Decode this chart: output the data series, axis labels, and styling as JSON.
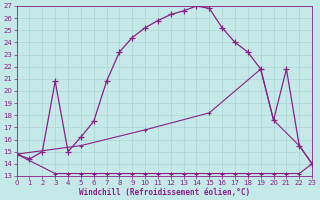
{
  "xlabel": "Windchill (Refroidissement éolien,°C)",
  "ylim": [
    13,
    27
  ],
  "xlim": [
    0,
    23
  ],
  "yticks": [
    13,
    14,
    15,
    16,
    17,
    18,
    19,
    20,
    21,
    22,
    23,
    24,
    25,
    26,
    27
  ],
  "xticks": [
    0,
    1,
    2,
    3,
    4,
    5,
    6,
    7,
    8,
    9,
    10,
    11,
    12,
    13,
    14,
    15,
    16,
    17,
    18,
    19,
    20,
    21,
    22,
    23
  ],
  "bg_color": "#c5e8e8",
  "grid_color": "#aed4d4",
  "line_color": "#882288",
  "line1_x": [
    0,
    1,
    2,
    3,
    4,
    5,
    6,
    7,
    8,
    9,
    10,
    11,
    12,
    13,
    14,
    15,
    16,
    17,
    18,
    19,
    20,
    21,
    22,
    23
  ],
  "line1_y": [
    14.8,
    14.4,
    15.0,
    20.8,
    15.0,
    16.2,
    17.5,
    20.8,
    23.2,
    24.4,
    25.2,
    25.8,
    26.3,
    26.6,
    27.0,
    26.8,
    25.2,
    24.0,
    23.2,
    21.8,
    17.6,
    21.8,
    15.5,
    14.0
  ],
  "line2_x": [
    0,
    3,
    4,
    5,
    6,
    7,
    8,
    9,
    10,
    11,
    12,
    13,
    14,
    15,
    16,
    17,
    18,
    19,
    20,
    21,
    22,
    23
  ],
  "line2_y": [
    14.8,
    13.2,
    13.2,
    13.2,
    13.2,
    13.2,
    13.2,
    13.2,
    13.2,
    13.2,
    13.2,
    13.2,
    13.2,
    13.2,
    13.2,
    13.2,
    13.2,
    13.2,
    13.2,
    13.2,
    13.2,
    14.0
  ],
  "line3_x": [
    0,
    5,
    10,
    15,
    19,
    20,
    22,
    23
  ],
  "line3_y": [
    14.8,
    15.5,
    16.8,
    18.2,
    21.8,
    17.6,
    15.5,
    14.0
  ]
}
